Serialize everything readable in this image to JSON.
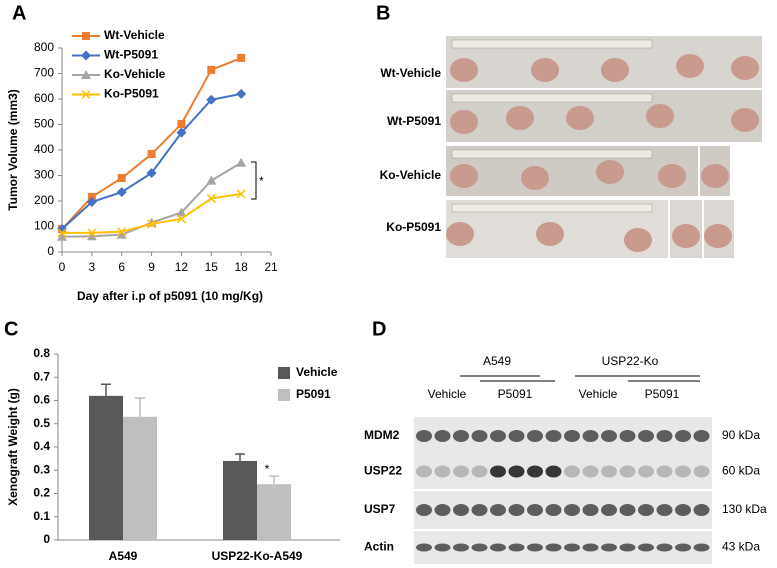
{
  "panel_labels": [
    "A",
    "B",
    "C",
    "D"
  ],
  "chart_data": [
    {
      "type": "line",
      "ylabel": "Tumor Volume (mm3)",
      "xlabel": "Day after i.p of p5091 (10 mg/Kg)",
      "x": [
        0,
        3,
        6,
        9,
        12,
        15,
        18
      ],
      "series": [
        {
          "name": "Wt-Vehicle",
          "color": "#ed7d31",
          "marker": "square",
          "values": [
            90,
            216,
            290,
            384,
            502,
            714,
            761
          ]
        },
        {
          "name": "Wt-P5091",
          "color": "#4472c4",
          "marker": "diamond",
          "values": [
            90,
            196,
            235,
            310,
            468,
            597,
            620
          ]
        },
        {
          "name": "Ko-Vehicle",
          "color": "#a5a5a5",
          "marker": "triangle",
          "values": [
            60,
            62,
            68,
            115,
            155,
            280,
            350
          ]
        },
        {
          "name": "Ko-P5091",
          "color": "#ffc000",
          "marker": "x",
          "values": [
            75,
            75,
            80,
            110,
            130,
            210,
            228
          ]
        }
      ],
      "xlim": [
        0,
        21
      ],
      "xticks": [
        0,
        3,
        6,
        9,
        12,
        15,
        18,
        21
      ],
      "ylim": [
        0,
        800
      ],
      "yticks": [
        0,
        100,
        200,
        300,
        400,
        500,
        600,
        700,
        800
      ],
      "annotation": "*"
    },
    {
      "type": "bar",
      "ylabel": "Xenograft Weight (g)",
      "categories": [
        "A549",
        "USP22-Ko-A549"
      ],
      "series": [
        {
          "name": "Vehicle",
          "color": "#595959",
          "values": [
            0.62,
            0.34
          ],
          "errors": [
            0.05,
            0.03
          ]
        },
        {
          "name": "P5091",
          "color": "#bfbfbf",
          "values": [
            0.53,
            0.24
          ],
          "errors": [
            0.08,
            0.035
          ]
        }
      ],
      "ylim": [
        0,
        0.8
      ],
      "yticks": [
        0,
        0.1,
        0.2,
        0.3,
        0.4,
        0.5,
        0.6,
        0.7,
        0.8
      ],
      "annotation": "*"
    }
  ],
  "photo_panel": {
    "rows": [
      "Wt-Vehicle",
      "Wt-P5091",
      "Ko-Vehicle",
      "Ko-P5091"
    ]
  },
  "western_blot": {
    "groups": [
      "A549",
      "USP22-Ko"
    ],
    "treatments": [
      "Vehicle",
      "P5091",
      "Vehicle",
      "P5091"
    ],
    "rows": [
      {
        "protein": "MDM2",
        "size": "90 kDa"
      },
      {
        "protein": "USP22",
        "size": "60 kDa"
      },
      {
        "protein": "USP7",
        "size": "130 kDa"
      },
      {
        "protein": "Actin",
        "size": "43 kDa"
      }
    ]
  }
}
